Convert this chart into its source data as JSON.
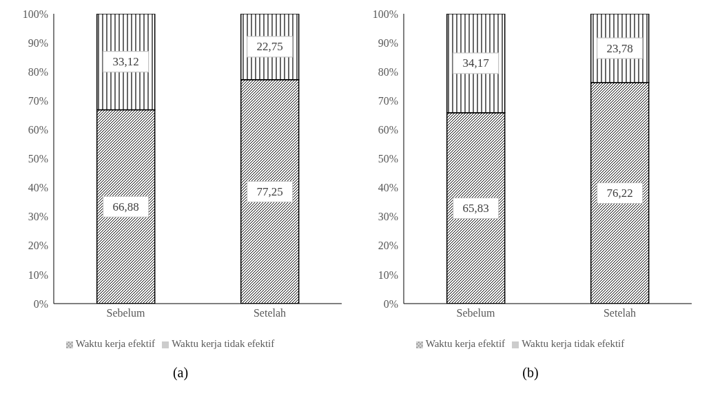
{
  "chart_data": [
    {
      "type": "bar",
      "stacked": true,
      "categories": [
        "Sebelum",
        "Setelah"
      ],
      "series": [
        {
          "name": "Waktu kerja efektif",
          "color": "#000000",
          "values": [
            66.88,
            77.25
          ],
          "value_labels": [
            "66,88",
            "77,25"
          ]
        },
        {
          "name": "Waktu kerja tidak efektif",
          "color": "#000000",
          "values": [
            33.12,
            22.75
          ],
          "value_labels": [
            "33,12",
            "22,75"
          ]
        }
      ],
      "ylim": [
        0,
        100
      ],
      "yticks": [
        {
          "value": 0,
          "label": "0%"
        },
        {
          "value": 10,
          "label": "10%"
        },
        {
          "value": 20,
          "label": "20%"
        },
        {
          "value": 30,
          "label": "30%"
        },
        {
          "value": 40,
          "label": "40%"
        },
        {
          "value": 50,
          "label": "50%"
        },
        {
          "value": 60,
          "label": "60%"
        },
        {
          "value": 70,
          "label": "70%"
        },
        {
          "value": 80,
          "label": "80%"
        },
        {
          "value": 90,
          "label": "90%"
        },
        {
          "value": 100,
          "label": "100%"
        }
      ],
      "grid": false,
      "legend": "bottom",
      "annotations": [
        "(a)"
      ]
    },
    {
      "type": "bar",
      "stacked": true,
      "categories": [
        "Sebelum",
        "Setelah"
      ],
      "series": [
        {
          "name": "Waktu kerja efektif",
          "color": "#000000",
          "values": [
            65.83,
            76.22
          ],
          "value_labels": [
            "65,83",
            "76,22"
          ]
        },
        {
          "name": "Waktu kerja tidak efektif",
          "color": "#000000",
          "values": [
            34.17,
            23.78
          ],
          "value_labels": [
            "34,17",
            "23,78"
          ]
        }
      ],
      "ylim": [
        0,
        100
      ],
      "yticks": [
        {
          "value": 0,
          "label": "0%"
        },
        {
          "value": 10,
          "label": "10%"
        },
        {
          "value": 20,
          "label": "20%"
        },
        {
          "value": 30,
          "label": "30%"
        },
        {
          "value": 40,
          "label": "40%"
        },
        {
          "value": 50,
          "label": "50%"
        },
        {
          "value": 60,
          "label": "60%"
        },
        {
          "value": 70,
          "label": "70%"
        },
        {
          "value": 80,
          "label": "80%"
        },
        {
          "value": 90,
          "label": "90%"
        },
        {
          "value": 100,
          "label": "100%"
        }
      ],
      "grid": false,
      "legend": "bottom",
      "annotations": [
        "(b)"
      ]
    }
  ]
}
